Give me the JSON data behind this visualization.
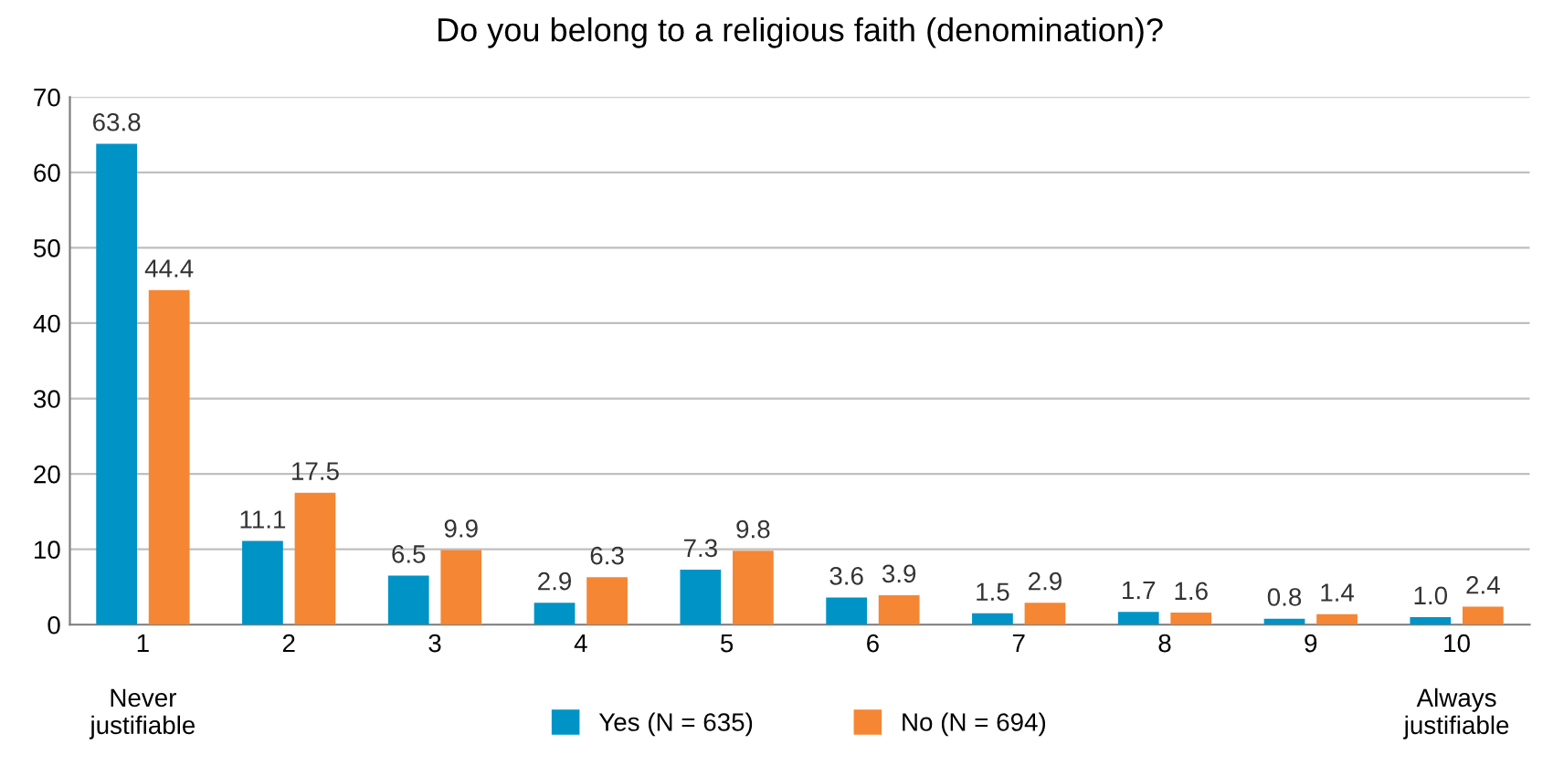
{
  "chart_data": {
    "type": "bar",
    "title": "Do you belong to a religious faith (denomination)?",
    "categories": [
      "1\n\nNever\njustifiable",
      "2",
      "3",
      "4",
      "5",
      "6",
      "7",
      "8",
      "9",
      "10\n\nAlways\njustifiable"
    ],
    "series": [
      {
        "name": "Yes (N = 635)",
        "color": "#0093c6",
        "values": [
          63.8,
          11.1,
          6.5,
          2.9,
          7.3,
          3.6,
          1.5,
          1.7,
          0.8,
          1.0
        ],
        "value_labels": [
          "63.8",
          "11.1",
          "6.5",
          "2.9",
          "7.3",
          "3.6",
          "1.5",
          "1.7",
          "0.8",
          "1.0"
        ]
      },
      {
        "name": "No (N = 694)",
        "color": "#f58634",
        "values": [
          44.4,
          17.5,
          9.9,
          6.3,
          9.8,
          3.9,
          2.9,
          1.6,
          1.4,
          2.4
        ],
        "value_labels": [
          "44.4",
          "17.5",
          "9.9",
          "6.3",
          "9.8",
          "3.9",
          "2.9",
          "1.6",
          "1.4",
          "2.4"
        ]
      }
    ],
    "ylim": [
      0,
      70
    ],
    "yticks": [
      0,
      10,
      20,
      30,
      40,
      50,
      60,
      70
    ],
    "grid": "y",
    "legend": "bottom"
  }
}
